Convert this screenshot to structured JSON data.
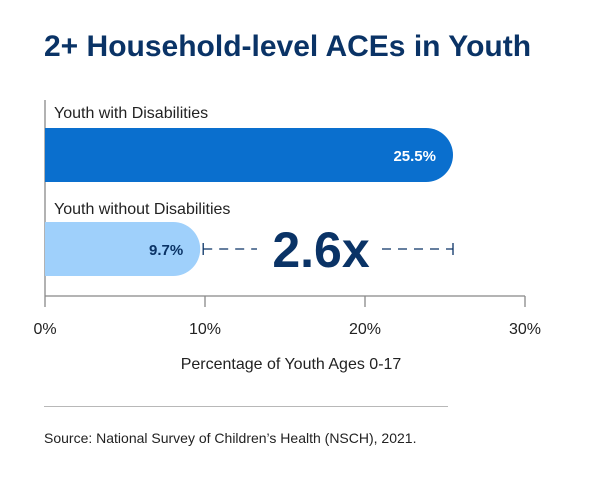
{
  "chart_data": {
    "type": "bar",
    "orientation": "horizontal",
    "title": "2+ Household-level ACEs in Youth",
    "categories": [
      "Youth with Disabilities",
      "Youth without Disabilities"
    ],
    "values": [
      25.5,
      9.7
    ],
    "value_labels": [
      "25.5%",
      "9.7%"
    ],
    "xlabel": "Percentage of Youth Ages 0-17",
    "xlim": [
      0,
      30
    ],
    "xticks": [
      0,
      10,
      20,
      30
    ],
    "xtick_labels": [
      "0%",
      "10%",
      "20%",
      "30%"
    ],
    "grid": false,
    "annotation": {
      "text": "2.6x",
      "comparison_value": 25.5
    },
    "colors": {
      "Youth with Disabilities": "#0a6fce",
      "Youth without Disabilities": "#9fd0fb"
    },
    "source": "Source: National Survey of Children’s Health (NSCH), 2021."
  }
}
